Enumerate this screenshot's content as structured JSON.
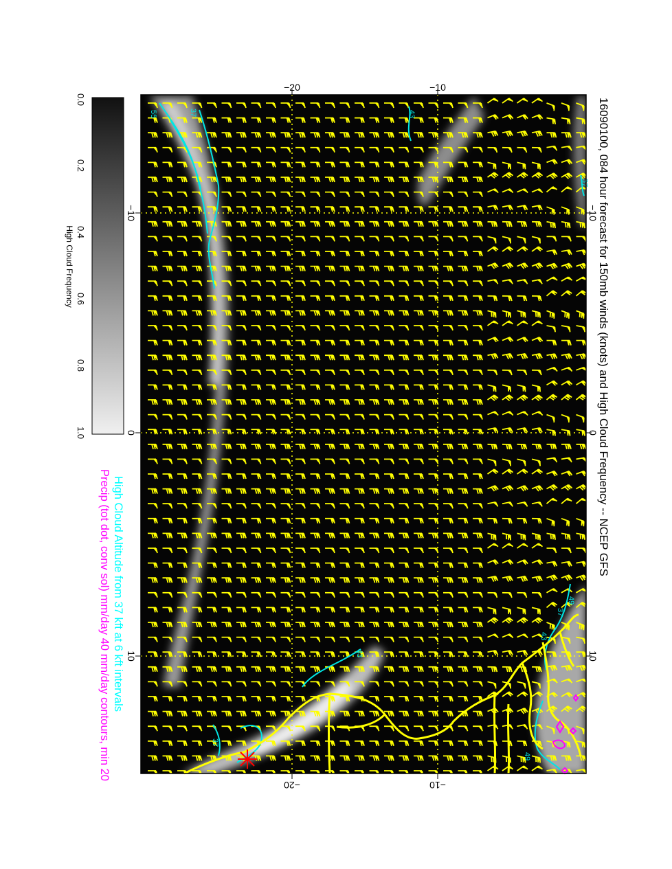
{
  "title": "16090100, 084 hour forecast for 150mb winds (knots) and High Cloud Frequency -- NCEP GFS",
  "legend": {
    "altitude_note": "High Cloud Altitude from 37 kft at 6 kft intervals",
    "precip_note": "Precip (tot dot, conv sol) mm/day 40 mm/day contours, min 20"
  },
  "colorbar": {
    "label": "High Cloud Frequency",
    "ticks": [
      "0.0",
      "0.2",
      "0.4",
      "0.6",
      "0.8",
      "1.0"
    ]
  },
  "axes": {
    "top_ticks": [
      "−20",
      "−10"
    ],
    "bottom_ticks": [
      "−20",
      "−10"
    ],
    "left_ticks": [
      "−10",
      "0",
      "10"
    ],
    "right_ticks": [
      "−10",
      "0",
      "10"
    ]
  },
  "contour_labels": [
    "55",
    "37",
    "43",
    "43",
    "37",
    "49",
    "37",
    "43",
    "49",
    "37"
  ],
  "colors": {
    "background": "#050505",
    "barb": "#ffff00",
    "coast": "#ffff00",
    "altitude_contour": "#00e5e5",
    "precip_contour": "#ff00ff",
    "marker": "#ff0000",
    "altitude_text": "#00ffff",
    "precip_text": "#ff00ff"
  }
}
